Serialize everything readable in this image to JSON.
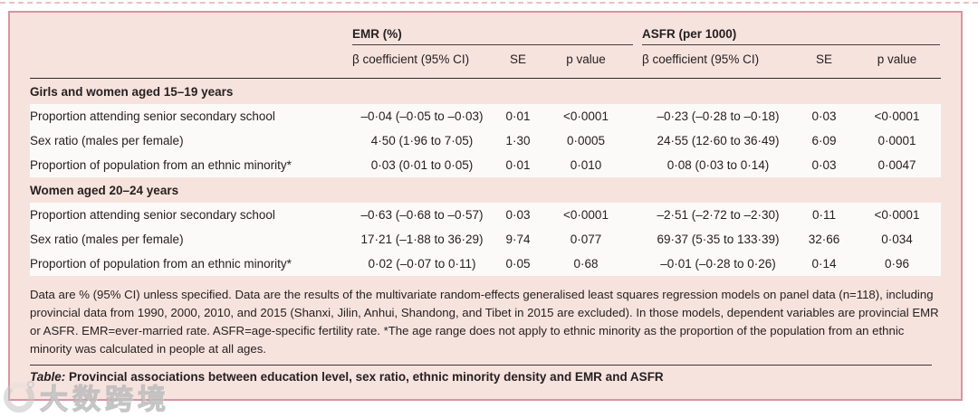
{
  "colors": {
    "table_background": "#f7e3de",
    "table_border": "#d695a1",
    "row_background": "#fcfaf8",
    "rule_dark": "#2e2829",
    "text": "#252021",
    "top_dashed_line": "#eebec5"
  },
  "table": {
    "groups": [
      {
        "label": "EMR (%)"
      },
      {
        "label": "ASFR (per 1000)"
      }
    ],
    "subheaders": {
      "beta": "β coefficient (95% CI)",
      "se": "SE",
      "p": "p value"
    },
    "sections": [
      {
        "header": "Girls and women aged 15–19 years",
        "rows": [
          {
            "label": "Proportion attending senior secondary school",
            "emr_beta": "–0·04 (–0·05 to –0·03)",
            "emr_se": "0·01",
            "emr_p": "<0·0001",
            "asfr_beta": "–0·23 (–0·28 to –0·18)",
            "asfr_se": "0·03",
            "asfr_p": "<0·0001"
          },
          {
            "label": "Sex ratio (males per female)",
            "emr_beta": "4·50 (1·96 to 7·05)",
            "emr_se": "1·30",
            "emr_p": "0·0005",
            "asfr_beta": "24·55 (12·60 to 36·49)",
            "asfr_se": "6·09",
            "asfr_p": "0·0001"
          },
          {
            "label": "Proportion of population from an ethnic minority*",
            "emr_beta": "0·03 (0·01 to 0·05)",
            "emr_se": "0·01",
            "emr_p": "0·010",
            "asfr_beta": "0·08 (0·03 to 0·14)",
            "asfr_se": "0·03",
            "asfr_p": "0·0047"
          }
        ]
      },
      {
        "header": "Women aged 20–24 years",
        "rows": [
          {
            "label": "Proportion attending senior secondary school",
            "emr_beta": "–0·63 (–0·68 to –0·57)",
            "emr_se": "0·03",
            "emr_p": "<0·0001",
            "asfr_beta": "–2·51 (–2·72 to –2·30)",
            "asfr_se": "0·11",
            "asfr_p": "<0·0001"
          },
          {
            "label": "Sex ratio (males per female)",
            "emr_beta": "17·21 (–1·88 to 36·29)",
            "emr_se": "9·74",
            "emr_p": "0·077",
            "asfr_beta": "69·37 (5·35 to 133·39)",
            "asfr_se": "32·66",
            "asfr_p": "0·034"
          },
          {
            "label": "Proportion of population from an ethnic minority*",
            "emr_beta": "0·02 (–0·07 to 0·11)",
            "emr_se": "0·05",
            "emr_p": "0·68",
            "asfr_beta": "–0·01 (–0·28 to 0·26)",
            "asfr_se": "0·14",
            "asfr_p": "0·96"
          }
        ]
      }
    ],
    "footnote": "Data are % (95% CI) unless specified. Data are the results of the multivariate random-effects generalised least squares regression models on panel data (n=118), including provincial data from 1990, 2000, 2010, and 2015 (Shanxi, Jilin, Anhui, Shandong, and Tibet in 2015 are excluded). In those models, dependent variables are provincial EMR or ASFR. EMR=ever-married rate. ASFR=age-specific fertility rate. *The age range does not apply to ethnic minority as the proportion of  the population from an ethnic minority was calculated in people at all ages.",
    "caption_label": "Table:",
    "caption_text": " Provincial associations between education level, sex ratio, ethnic minority density and EMR and ASFR"
  },
  "watermark": {
    "text": "大数跨境"
  }
}
